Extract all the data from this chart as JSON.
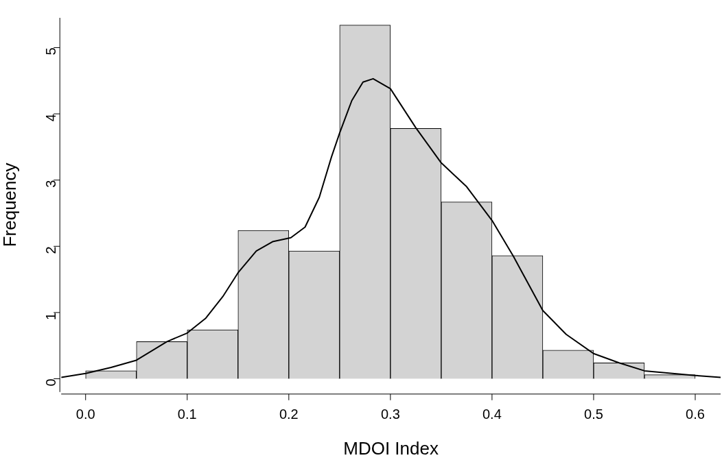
{
  "chart_data": {
    "type": "histogram",
    "xlabel": "MDOI Index",
    "ylabel": "Frequency",
    "xlim": [
      -0.024,
      0.625
    ],
    "xticks": [
      {
        "value": 0,
        "label": "0.0"
      },
      {
        "value": 0.1,
        "label": "0.1"
      },
      {
        "value": 0.2,
        "label": "0.2"
      },
      {
        "value": 0.3,
        "label": "0.3"
      },
      {
        "value": 0.4,
        "label": "0.4"
      },
      {
        "value": 0.5,
        "label": "0.5"
      },
      {
        "value": 0.6,
        "label": "0.6"
      }
    ],
    "ylim": [
      -0.2,
      5.45
    ],
    "yticks": [
      0,
      1,
      2,
      3,
      4,
      5
    ],
    "series": [
      {
        "color": "#d3d3d3",
        "bins": [
          0,
          0.05,
          0.1,
          0.15,
          0.2,
          0.25,
          0.3,
          0.35,
          0.4,
          0.45,
          0.5,
          0.55,
          0.6
        ],
        "values": [
          0.12,
          0.56,
          0.74,
          2.24,
          1.93,
          5.34,
          3.78,
          2.67,
          1.86,
          0.43,
          0.24,
          0.06
        ]
      },
      {
        "type": "line",
        "color": "#000000",
        "x": [
          -0.024,
          0,
          0.025,
          0.05,
          0.08,
          0.1,
          0.118,
          0.135,
          0.15,
          0.168,
          0.184,
          0.202,
          0.216,
          0.23,
          0.242,
          0.25,
          0.262,
          0.273,
          0.283,
          0.3,
          0.325,
          0.35,
          0.375,
          0.4,
          0.421,
          0.45,
          0.473,
          0.5,
          0.525,
          0.55,
          0.6,
          0.625
        ],
        "values": [
          0.02,
          0.08,
          0.17,
          0.28,
          0.56,
          0.69,
          0.91,
          1.24,
          1.6,
          1.93,
          2.07,
          2.13,
          2.29,
          2.74,
          3.35,
          3.71,
          4.2,
          4.48,
          4.53,
          4.38,
          3.79,
          3.26,
          2.9,
          2.39,
          1.85,
          1.03,
          0.67,
          0.38,
          0.24,
          0.12,
          0.05,
          0.02
        ]
      }
    ]
  }
}
